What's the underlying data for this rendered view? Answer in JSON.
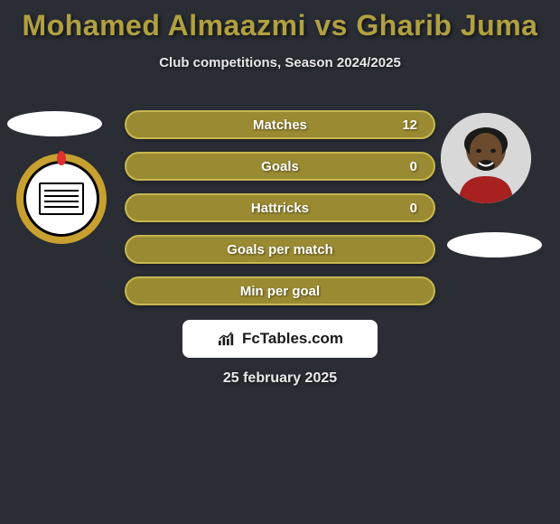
{
  "header": {
    "title": "Mohamed Almaazmi vs Gharib Juma",
    "title_color": "#b0a040",
    "subtitle": "Club competitions, Season 2024/2025"
  },
  "stat_bars": {
    "bar_bg_color": "#9a8a32",
    "bar_border_color": "#c8b850",
    "rows": [
      {
        "label": "Matches",
        "value_right": "12"
      },
      {
        "label": "Goals",
        "value_right": "0"
      },
      {
        "label": "Hattricks",
        "value_right": "0"
      },
      {
        "label": "Goals per match",
        "value_right": ""
      },
      {
        "label": "Min per goal",
        "value_right": ""
      }
    ]
  },
  "logo": {
    "text": "FcTables.com"
  },
  "footer": {
    "date": "25 february 2025"
  },
  "style": {
    "background_color": "#2a2d34"
  }
}
